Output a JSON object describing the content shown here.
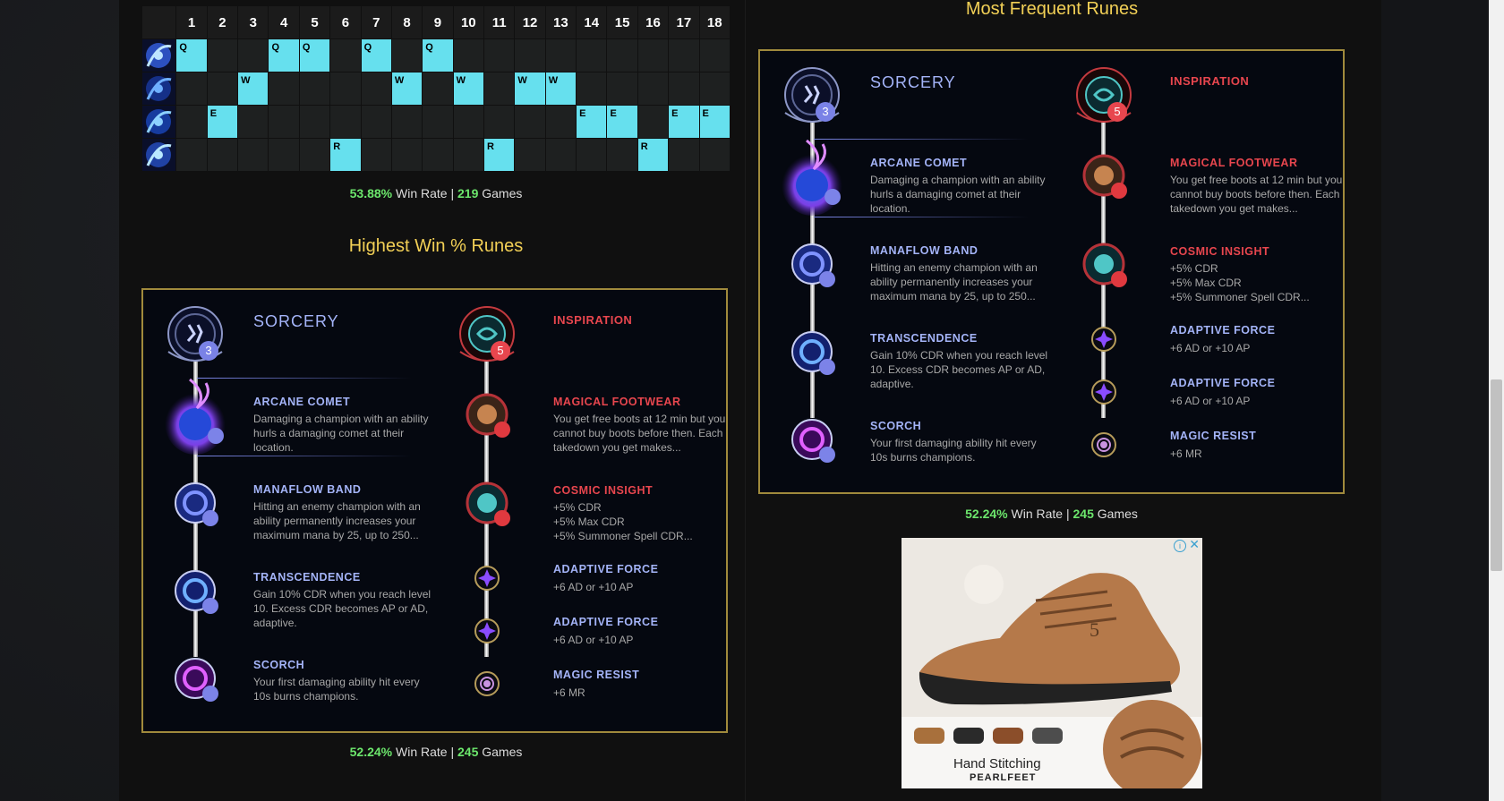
{
  "skill_order": {
    "levels": [
      "1",
      "2",
      "3",
      "4",
      "5",
      "6",
      "7",
      "8",
      "9",
      "10",
      "11",
      "12",
      "13",
      "14",
      "15",
      "16",
      "17",
      "18"
    ],
    "rows": [
      {
        "key": "Q",
        "icon": "q-ability-icon",
        "levels": [
          1,
          4,
          5,
          7,
          9
        ]
      },
      {
        "key": "W",
        "icon": "w-ability-icon",
        "levels": [
          3,
          8,
          10,
          12,
          13
        ]
      },
      {
        "key": "E",
        "icon": "e-ability-icon",
        "levels": [
          2,
          14,
          15,
          17,
          18
        ]
      },
      {
        "key": "R",
        "icon": "r-ability-icon",
        "levels": [
          6,
          11,
          16
        ]
      }
    ],
    "stats": {
      "win_rate": "53.88%",
      "win_label": " Win Rate | ",
      "games": "219",
      "games_label": " Games"
    }
  },
  "highest_win": {
    "title": "Highest Win % Runes",
    "stats": {
      "win_rate": "52.24%",
      "win_label": " Win Rate | ",
      "games": "245",
      "games_label": " Games"
    }
  },
  "most_frequent": {
    "title": "Most Frequent Runes",
    "stats": {
      "win_rate": "52.24%",
      "win_label": " Win Rate | ",
      "games": "245",
      "games_label": " Games"
    }
  },
  "runes": {
    "primary": {
      "tree": "SORCERY",
      "badge": "3",
      "keystone": {
        "name": "ARCANE COMET",
        "desc": "Damaging a champion with an ability hurls a damaging comet at their location."
      },
      "slots": [
        {
          "name": "MANAFLOW BAND",
          "desc": "Hitting an enemy champion with an ability permanently increases your maximum mana by 25, up to 250..."
        },
        {
          "name": "TRANSCENDENCE",
          "desc": "Gain 10% CDR when you reach level 10. Excess CDR becomes AP or AD, adaptive."
        },
        {
          "name": "SCORCH",
          "desc": "Your first damaging ability hit every 10s burns champions."
        }
      ]
    },
    "secondary": {
      "tree": "INSPIRATION",
      "badge": "5",
      "slots": [
        {
          "name": "MAGICAL FOOTWEAR",
          "desc": "You get free boots at 12 min but you cannot buy boots before then. Each takedown you get makes..."
        },
        {
          "name": "COSMIC INSIGHT",
          "desc_lines": [
            "+5% CDR",
            "+5% Max CDR",
            "+5% Summoner Spell CDR..."
          ]
        }
      ],
      "shards": [
        {
          "name": "ADAPTIVE FORCE",
          "desc": "+6 AD or +10 AP",
          "icon": "adaptive-force-icon"
        },
        {
          "name": "ADAPTIVE FORCE",
          "desc": "+6 AD or +10 AP",
          "icon": "adaptive-force-icon"
        },
        {
          "name": "MAGIC RESIST",
          "desc": "+6 MR",
          "icon": "magic-resist-icon"
        }
      ]
    }
  },
  "ad": {
    "caption": "Hand Stitching",
    "brand": "PEARLFEET",
    "badge": "5"
  },
  "colors": {
    "accent_gold": "#f2d056",
    "win_green": "#6ce66c",
    "sorcery_blue": "#a4b4f8",
    "inspiration_red": "#e8464e",
    "skill_cyan": "#66e0ee"
  }
}
